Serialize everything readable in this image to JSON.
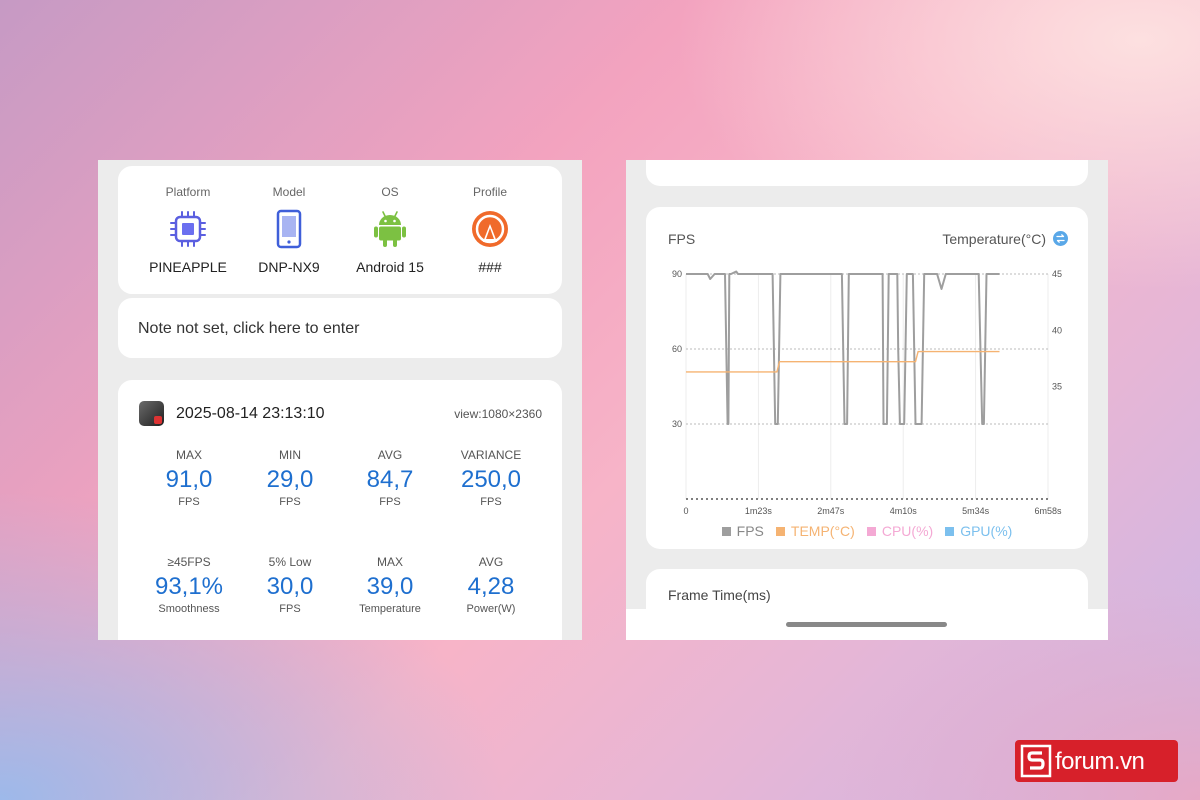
{
  "device_info": {
    "columns": [
      {
        "label": "Platform",
        "value": "PINEAPPLE",
        "icon": "chip-icon"
      },
      {
        "label": "Model",
        "value": "DNP-NX9",
        "icon": "phone-icon"
      },
      {
        "label": "OS",
        "value": "Android 15",
        "icon": "android-icon"
      },
      {
        "label": "Profile",
        "value": "###",
        "icon": "profile-icon"
      }
    ]
  },
  "note": {
    "text": "Note not set, click here to enter"
  },
  "session": {
    "timestamp": "2025-08-14 23:13:10",
    "view": "view:1080×2360",
    "stats": [
      {
        "top": "MAX",
        "value": "91,0",
        "bottom": "FPS"
      },
      {
        "top": "MIN",
        "value": "29,0",
        "bottom": "FPS"
      },
      {
        "top": "AVG",
        "value": "84,7",
        "bottom": "FPS"
      },
      {
        "top": "VARIANCE",
        "value": "250,0",
        "bottom": "FPS"
      },
      {
        "top": "≥45FPS",
        "value": "93,1%",
        "bottom": "Smoothness"
      },
      {
        "top": "5% Low",
        "value": "30,0",
        "bottom": "FPS"
      },
      {
        "top": "MAX",
        "value": "39,0",
        "bottom": "Temperature"
      },
      {
        "top": "AVG",
        "value": "4,28",
        "bottom": "Power(W)"
      }
    ]
  },
  "fps_chart": {
    "title_left": "FPS",
    "title_right": "Temperature(°C)"
  },
  "chart_data": {
    "type": "line",
    "x_ticks": [
      "0",
      "1m23s",
      "2m47s",
      "4m10s",
      "5m34s",
      "6m58s"
    ],
    "y_left_ticks": [
      "90",
      "60",
      "30"
    ],
    "y_right_ticks": [
      "45",
      "40",
      "35"
    ],
    "ylim_left": [
      0,
      90
    ],
    "ylim_right": [
      25,
      45
    ],
    "series": [
      {
        "name": "FPS",
        "color": "#9e9e9e",
        "points": [
          [
            0,
            90
          ],
          [
            25,
            90
          ],
          [
            28,
            88
          ],
          [
            33,
            90
          ],
          [
            45,
            90
          ],
          [
            48,
            30
          ],
          [
            49,
            30
          ],
          [
            50,
            90
          ],
          [
            52,
            90
          ],
          [
            58,
            91
          ],
          [
            60,
            90
          ],
          [
            100,
            90
          ],
          [
            103,
            30
          ],
          [
            106,
            30
          ],
          [
            109,
            90
          ],
          [
            120,
            90
          ],
          [
            150,
            90
          ],
          [
            180,
            90
          ],
          [
            183,
            30
          ],
          [
            186,
            30
          ],
          [
            188,
            90
          ],
          [
            200,
            90
          ],
          [
            205,
            90
          ],
          [
            227,
            90
          ],
          [
            228,
            30
          ],
          [
            232,
            30
          ],
          [
            234,
            90
          ],
          [
            244,
            90
          ],
          [
            245,
            60
          ],
          [
            247,
            30
          ],
          [
            252,
            30
          ],
          [
            255,
            90
          ],
          [
            262,
            90
          ],
          [
            265,
            30
          ],
          [
            272,
            30
          ],
          [
            275,
            90
          ],
          [
            290,
            90
          ],
          [
            295,
            84
          ],
          [
            300,
            90
          ],
          [
            338,
            90
          ],
          [
            342,
            30
          ],
          [
            344,
            30
          ],
          [
            347,
            90
          ],
          [
            362,
            90
          ]
        ]
      },
      {
        "name": "TEMP(°C)",
        "color": "#f5b372",
        "points": [
          [
            0,
            36.3
          ],
          [
            105,
            36.3
          ],
          [
            108,
            37.2
          ],
          [
            265,
            37.2
          ],
          [
            268,
            38.1
          ],
          [
            362,
            38.1
          ]
        ]
      },
      {
        "name": "CPU(%)",
        "color": "#f4a9d4",
        "points": []
      },
      {
        "name": "GPU(%)",
        "color": "#7cc0ee",
        "points": []
      }
    ]
  },
  "frame_time": {
    "title": "Frame Time(ms)"
  },
  "watermark": {
    "text": "forum.vn"
  }
}
